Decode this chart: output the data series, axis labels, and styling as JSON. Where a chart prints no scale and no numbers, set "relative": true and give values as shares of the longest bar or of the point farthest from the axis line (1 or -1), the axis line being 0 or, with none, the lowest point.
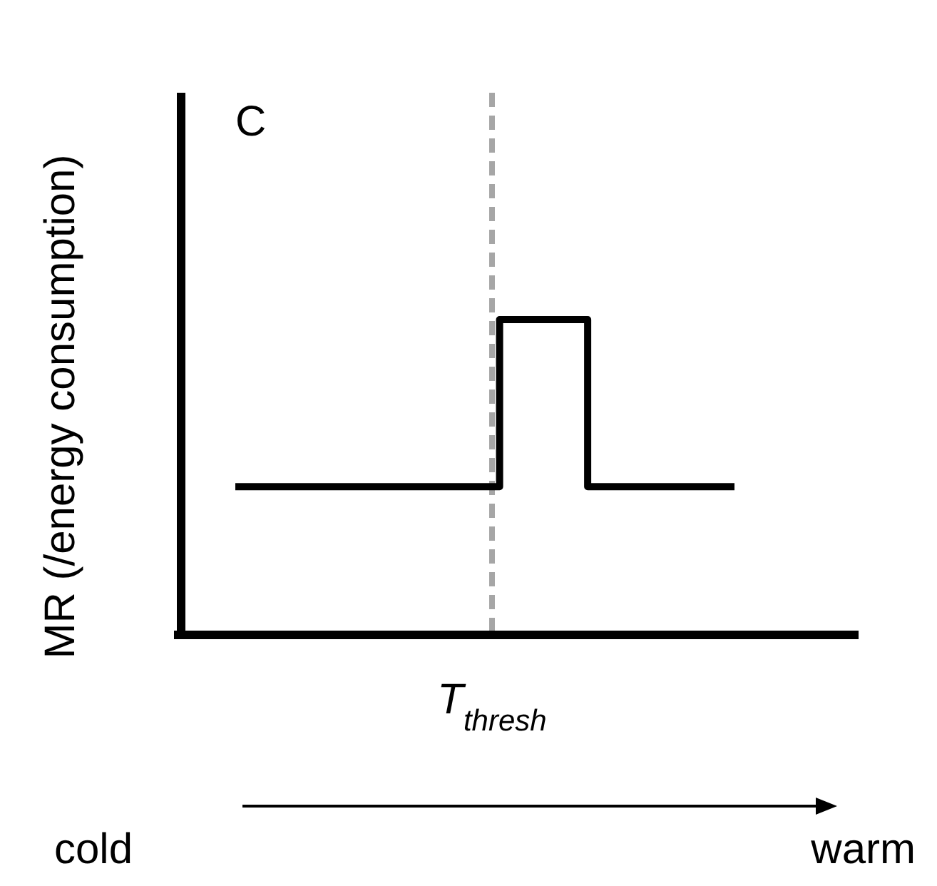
{
  "chart_data": {
    "type": "step",
    "relative": true,
    "ylabel": "MR (/energy consumption)",
    "categories": [
      null,
      null,
      null,
      null,
      null,
      null,
      null,
      null,
      null,
      null,
      null,
      null,
      null,
      null,
      null,
      null,
      null,
      null
    ],
    "series": [
      {
        "color": "#000000",
        "values": [
          0.47,
          0.47,
          0.47,
          0.47,
          0.47,
          0.47,
          0.47,
          0.47,
          0.47,
          1,
          1,
          1,
          0.47,
          0.47,
          0.47,
          0.47,
          0.47,
          0.47
        ]
      }
    ],
    "annotations": [
      "C",
      "T$_{thresh}$",
      "cold",
      "warm"
    ],
    "line_style": "solid"
  }
}
